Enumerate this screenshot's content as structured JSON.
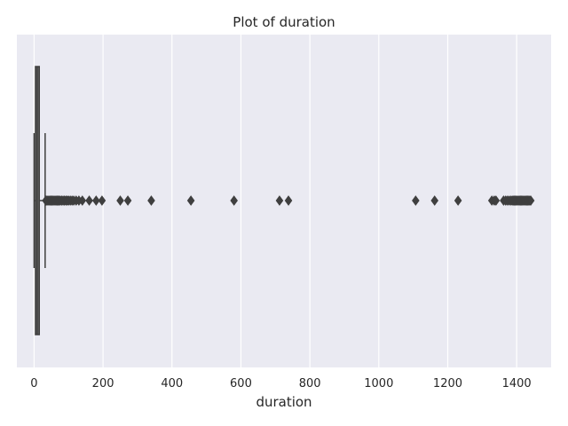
{
  "chart_data": {
    "type": "boxplot",
    "orientation": "horizontal",
    "title": "Plot of duration",
    "xlabel": "duration",
    "ylabel": "",
    "xlim": [
      -50,
      1500
    ],
    "xticks": [
      0,
      200,
      400,
      600,
      800,
      1000,
      1200,
      1400
    ],
    "grid": true,
    "legend": "none",
    "colors": {
      "plot_background": "#eaeaf2",
      "box_fill": "#6b6b6b",
      "lines": "#3f3f3f",
      "grid": "#ffffff"
    },
    "box": {
      "q1": 4,
      "median": 9,
      "q3": 15,
      "whisker_low": 0,
      "whisker_high": 32
    },
    "outliers": [
      34,
      37,
      40,
      43,
      46,
      49,
      52,
      55,
      58,
      61,
      64,
      67,
      70,
      73,
      76,
      80,
      84,
      88,
      92,
      96,
      100,
      105,
      110,
      115,
      122,
      130,
      140,
      160,
      180,
      197,
      250,
      272,
      340,
      455,
      580,
      712,
      738,
      1107,
      1162,
      1230,
      1328,
      1335,
      1340,
      1362,
      1368,
      1373,
      1378,
      1383,
      1387,
      1390,
      1393,
      1396,
      1399,
      1402,
      1405,
      1408,
      1411,
      1414,
      1417,
      1420,
      1423,
      1426,
      1429,
      1432,
      1435,
      1438,
      1441
    ]
  }
}
